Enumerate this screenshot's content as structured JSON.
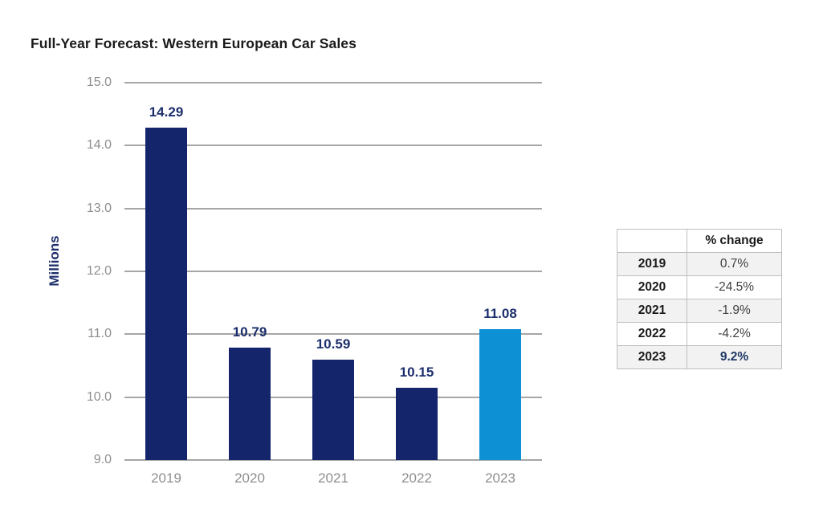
{
  "chart_data": {
    "type": "bar",
    "title": "Full-Year Forecast: Western European Car Sales",
    "categories": [
      "2019",
      "2020",
      "2021",
      "2022",
      "2023"
    ],
    "values": [
      14.29,
      10.79,
      10.59,
      10.15,
      11.08
    ],
    "labels": [
      "14.29",
      "10.79",
      "10.59",
      "10.15",
      "11.08"
    ],
    "xlabel": "",
    "ylabel": "Millions",
    "ylim": [
      9.0,
      15.0
    ],
    "yticks": [
      "15.0",
      "14.0",
      "13.0",
      "12.0",
      "11.0",
      "10.0",
      "9.0"
    ],
    "grid": true,
    "legend_position": "none",
    "bar_colors": [
      "#14256b",
      "#14256b",
      "#14256b",
      "#14256b",
      "#0e90d5"
    ]
  },
  "table": {
    "header": [
      "",
      "% change"
    ],
    "rows": [
      {
        "year": "2019",
        "change": "0.7%"
      },
      {
        "year": "2020",
        "change": "-24.5%"
      },
      {
        "year": "2021",
        "change": "-1.9%"
      },
      {
        "year": "2022",
        "change": "-4.2%"
      },
      {
        "year": "2023",
        "change": "9.2%"
      }
    ]
  },
  "colors": {
    "bar_navy": "#14256b",
    "bar_highlight_blue": "#0e90d5",
    "value_label_navy": "#1c2e6b",
    "axis_text_gray": "#8e8e8e",
    "gridline_gray": "#a6a6a6",
    "table_border": "#bfbfbf",
    "table_row_shade": "#f2f2f2",
    "title_black": "#1a1a1a"
  }
}
